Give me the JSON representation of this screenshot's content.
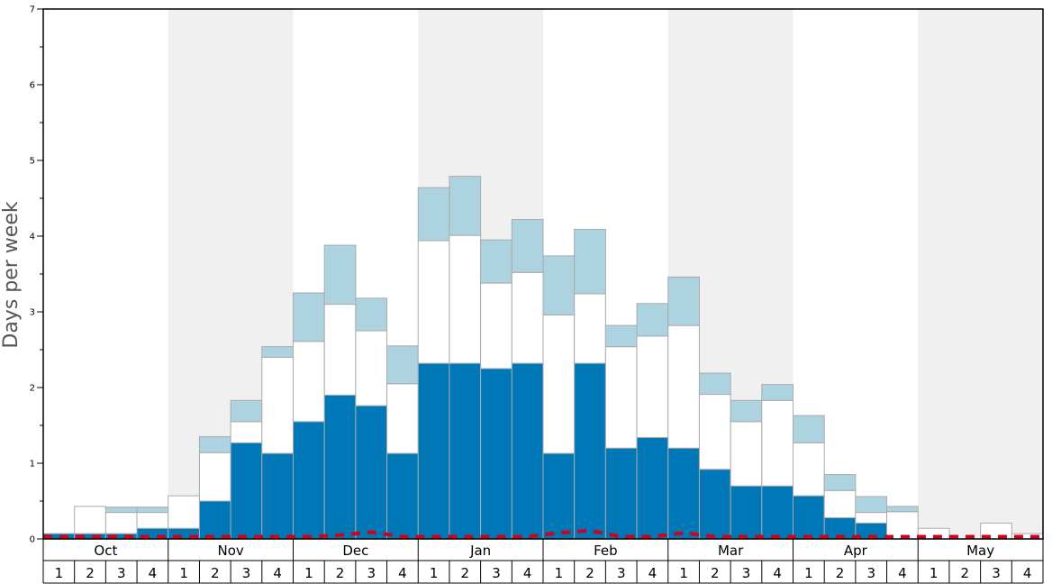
{
  "chart_data": {
    "type": "bar",
    "stacked": true,
    "ylabel": "Days per week",
    "xlabel": "",
    "title": "",
    "ylim": [
      0,
      7
    ],
    "yticks": [
      0,
      1,
      2,
      3,
      4,
      5,
      6,
      7
    ],
    "grid": false,
    "legend": "none",
    "months": [
      "Oct",
      "Nov",
      "Dec",
      "Jan",
      "Feb",
      "Mar",
      "Apr",
      "May"
    ],
    "week_labels": [
      "1",
      "2",
      "3",
      "4"
    ],
    "colors": {
      "dark": "#0077b6",
      "white": "#ffffff",
      "light": "#aed3e0",
      "line": "#d0021b",
      "band": "#f0f0f0",
      "bar_border": "#aaaaaa"
    },
    "series": [
      {
        "key": "dark",
        "values": [
          0.07,
          0.07,
          0.07,
          0.14,
          0.14,
          0.5,
          1.27,
          1.13,
          1.55,
          1.9,
          1.76,
          1.13,
          2.32,
          2.32,
          2.25,
          2.32,
          1.13,
          2.32,
          1.2,
          1.34,
          1.2,
          0.92,
          0.7,
          0.7,
          0.57,
          0.28,
          0.21,
          0,
          0,
          0,
          0,
          0
        ]
      },
      {
        "key": "white",
        "values": [
          0,
          0.36,
          0.28,
          0.21,
          0.43,
          0.64,
          0.28,
          1.27,
          1.06,
          1.2,
          0.99,
          0.92,
          1.62,
          1.69,
          1.13,
          1.2,
          1.83,
          0.92,
          1.34,
          1.34,
          1.62,
          0.99,
          0.85,
          1.13,
          0.7,
          0.36,
          0.14,
          0.36,
          0.14,
          0,
          0.21,
          0.07
        ]
      },
      {
        "key": "light",
        "values": [
          0,
          0,
          0.07,
          0.07,
          0,
          0.21,
          0.28,
          0.14,
          0.64,
          0.78,
          0.43,
          0.5,
          0.7,
          0.78,
          0.57,
          0.7,
          0.78,
          0.85,
          0.28,
          0.43,
          0.64,
          0.28,
          0.28,
          0.21,
          0.36,
          0.21,
          0.21,
          0.07,
          0,
          0,
          0,
          0
        ]
      }
    ],
    "dashed_line": [
      0.03,
      0.03,
      0.03,
      0.03,
      0.03,
      0.03,
      0.03,
      0.03,
      0.03,
      0.05,
      0.09,
      0.03,
      0.03,
      0.03,
      0.03,
      0.03,
      0.08,
      0.11,
      0.03,
      0.03,
      0.08,
      0.03,
      0.03,
      0.03,
      0.03,
      0.03,
      0.03,
      0.03,
      0.03,
      0.03,
      0.03,
      0.03
    ]
  }
}
